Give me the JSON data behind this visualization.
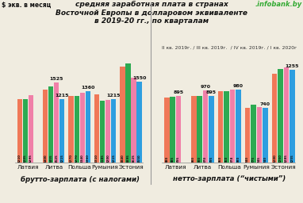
{
  "title_main": "средняя заработная плата в странах\nВосточной Европы в долларовом эквиваленте\nв 2019-20 гг., по кварталам",
  "ylabel": "$ экв. в месяц",
  "legend_text": "II кв. 2019г. / III кв. 2019г.  / IV кв. 2019г. / I кв. 2020г",
  "watermark": ".infobank.by",
  "brutto_label": "брутто-зарплата (с налогами)",
  "netto_label": "нетто-зарплата (“чистыми”)",
  "countries": [
    "Латвия",
    "Литва",
    "Польша",
    "Румыния",
    "Эстония"
  ],
  "brutto": [
    [
      1210,
      1205,
      1295,
      null
    ],
    [
      1400,
      1455,
      1525,
      1215
    ],
    [
      1270,
      1270,
      1340,
      1360
    ],
    [
      1310,
      1185,
      1200,
      1215
    ],
    [
      1840,
      1895,
      1625,
      1550
    ]
  ],
  "netto": [
    [
      880,
      885,
      895,
      null
    ],
    [
      900,
      900,
      970,
      895
    ],
    [
      960,
      960,
      978,
      980
    ],
    [
      740,
      775,
      745,
      740
    ],
    [
      1200,
      1260,
      1285,
      1255
    ]
  ],
  "bar_colors": [
    "#f07858",
    "#2daa52",
    "#f080a8",
    "#2d9ee0"
  ],
  "brutto_top_annotations": [
    [
      null,
      null,
      null,
      null
    ],
    [
      null,
      null,
      1525,
      1215
    ],
    [
      null,
      null,
      null,
      1360
    ],
    [
      null,
      null,
      null,
      1215
    ],
    [
      null,
      null,
      null,
      1550
    ]
  ],
  "netto_top_annotations": [
    [
      null,
      null,
      895,
      null
    ],
    [
      null,
      null,
      970,
      895
    ],
    [
      null,
      null,
      null,
      980
    ],
    [
      null,
      null,
      null,
      740
    ],
    [
      null,
      null,
      null,
      1255
    ]
  ],
  "bg_color": "#f0ece0",
  "ylim_brutto": [
    0,
    2100
  ],
  "ylim_netto": [
    0,
    1480
  ]
}
